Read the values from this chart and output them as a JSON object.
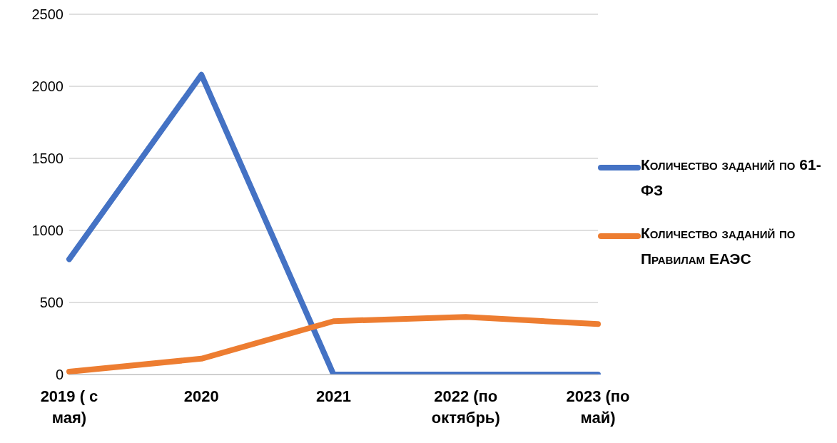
{
  "chart_data": {
    "type": "line",
    "categories": [
      "2019 ( с мая)",
      "2020",
      "2021",
      "2022 (по октябрь)",
      "2023 (по май)"
    ],
    "series": [
      {
        "name": "Количество заданий по 61-ФЗ",
        "color": "#4472c4",
        "values": [
          800,
          2080,
          0,
          0,
          0
        ]
      },
      {
        "name": "Количество заданий по Правилам ЕАЭС",
        "color": "#ed7d31",
        "values": [
          20,
          110,
          370,
          400,
          350
        ]
      }
    ],
    "ylim": [
      0,
      2500
    ],
    "yticks": [
      0,
      500,
      1000,
      1500,
      2000,
      2500
    ],
    "grid": "y",
    "legend": "right"
  }
}
